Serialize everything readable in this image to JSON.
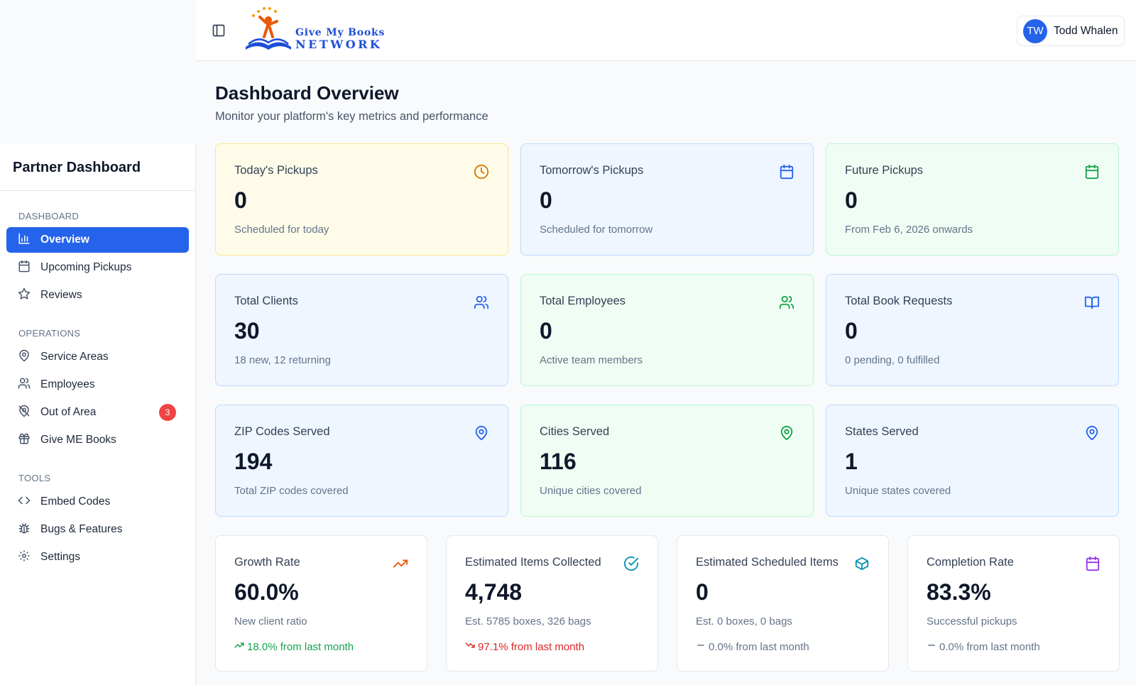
{
  "header": {
    "logo": {
      "line1": "Give My Books",
      "line2": "NETWORK"
    },
    "user": {
      "initials": "TW",
      "name": "Todd Whalen"
    }
  },
  "sidebar": {
    "title": "Partner Dashboard",
    "sections": [
      {
        "label": "DASHBOARD",
        "items": [
          {
            "label": "Overview",
            "icon": "bar-chart-icon",
            "active": true
          },
          {
            "label": "Upcoming Pickups",
            "icon": "calendar-icon"
          },
          {
            "label": "Reviews",
            "icon": "star-icon"
          }
        ]
      },
      {
        "label": "OPERATIONS",
        "items": [
          {
            "label": "Service Areas",
            "icon": "map-pin-icon"
          },
          {
            "label": "Employees",
            "icon": "users-icon"
          },
          {
            "label": "Out of Area",
            "icon": "map-pin-off-icon",
            "badge": "3"
          },
          {
            "label": "Give ME Books",
            "icon": "gift-icon"
          }
        ]
      },
      {
        "label": "TOOLS",
        "items": [
          {
            "label": "Embed Codes",
            "icon": "code-icon"
          },
          {
            "label": "Bugs & Features",
            "icon": "bug-icon"
          },
          {
            "label": "Settings",
            "icon": "gear-icon"
          }
        ]
      }
    ]
  },
  "main": {
    "title": "Dashboard Overview",
    "subtitle": "Monitor your platform's key metrics and performance",
    "cards": [
      {
        "label": "Today's Pickups",
        "value": "0",
        "sub": "Scheduled for today",
        "icon": "clock-icon",
        "color": "#d97706"
      },
      {
        "label": "Tomorrow's Pickups",
        "value": "0",
        "sub": "Scheduled for tomorrow",
        "icon": "calendar-icon",
        "color": "#2563eb"
      },
      {
        "label": "Future Pickups",
        "value": "0",
        "sub": "From Feb 6, 2026 onwards",
        "icon": "calendar-icon",
        "color": "#16a34a"
      },
      {
        "label": "Total Clients",
        "value": "30",
        "sub": "18 new, 12 returning",
        "icon": "users-icon",
        "color": "#2563eb"
      },
      {
        "label": "Total Employees",
        "value": "0",
        "sub": "Active team members",
        "icon": "users-icon",
        "color": "#16a34a"
      },
      {
        "label": "Total Book Requests",
        "value": "0",
        "sub": "0 pending, 0 fulfilled",
        "icon": "book-open-icon",
        "color": "#2563eb"
      },
      {
        "label": "ZIP Codes Served",
        "value": "194",
        "sub": "Total ZIP codes covered",
        "icon": "map-pin-icon",
        "color": "#2563eb"
      },
      {
        "label": "Cities Served",
        "value": "116",
        "sub": "Unique cities covered",
        "icon": "map-pin-icon",
        "color": "#16a34a"
      },
      {
        "label": "States Served",
        "value": "1",
        "sub": "Unique states covered",
        "icon": "map-pin-icon",
        "color": "#2563eb"
      }
    ],
    "stats": [
      {
        "label": "Growth Rate",
        "value": "60.0%",
        "sub": "New client ratio",
        "icon": "trending-up-icon",
        "color": "#ea580c",
        "trend": "18.0% from last month",
        "direction": "up"
      },
      {
        "label": "Estimated Items Collected",
        "value": "4,748",
        "sub": "Est. 5785 boxes, 326 bags",
        "icon": "check-circle-icon",
        "color": "#0891b2",
        "trend": "97.1% from last month",
        "direction": "down"
      },
      {
        "label": "Estimated Scheduled Items",
        "value": "0",
        "sub": "Est. 0 boxes, 0 bags",
        "icon": "package-icon",
        "color": "#0891b2",
        "trend": "0.0% from last month",
        "direction": "flat"
      },
      {
        "label": "Completion Rate",
        "value": "83.3%",
        "sub": "Successful pickups",
        "icon": "calendar-icon",
        "color": "#9333ea",
        "trend": "0.0% from last month",
        "direction": "flat"
      }
    ]
  }
}
